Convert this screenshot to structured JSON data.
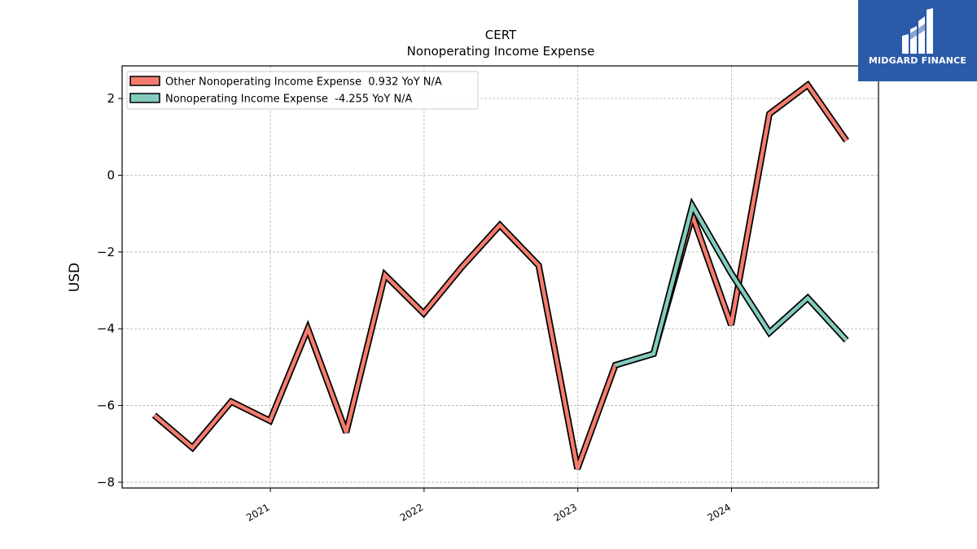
{
  "logo": {
    "text": "MIDGARD FINANCE"
  },
  "colors": {
    "series1": "#f47c6e",
    "series2": "#82cbbd",
    "outline": "#000000",
    "grid": "#b0b0b0",
    "logo_bg": "#2b5aa8"
  },
  "chart_data": {
    "type": "line",
    "title": "CERT",
    "subtitle": "Nonoperating Income Expense",
    "xlabel": "",
    "ylabel": "USD",
    "x_ticks": [
      "2021",
      "2022",
      "2023",
      "2024"
    ],
    "y_ticks": [
      2,
      0,
      -2,
      -4,
      -6,
      -8
    ],
    "y_tick_labels": [
      "2",
      "0",
      "−2",
      "−4",
      "−6",
      "−8"
    ],
    "ylim": [
      -8.15,
      2.85
    ],
    "xlim": [
      "2020-01-15",
      "2024-12-15"
    ],
    "grid": true,
    "legend_position": "upper-left",
    "series": [
      {
        "name": "Other Nonoperating Income Expense  0.932 YoY N/A",
        "color": "#f47c6e",
        "points": [
          [
            "2020-03-31",
            -6.25
          ],
          [
            "2020-06-30",
            -7.1
          ],
          [
            "2020-09-30",
            -5.9
          ],
          [
            "2020-12-31",
            -6.4
          ],
          [
            "2021-03-31",
            -4.0
          ],
          [
            "2021-06-30",
            -6.7
          ],
          [
            "2021-09-30",
            -2.6
          ],
          [
            "2021-12-31",
            -3.6
          ],
          [
            "2022-03-31",
            -2.4
          ],
          [
            "2022-06-30",
            -1.3
          ],
          [
            "2022-09-30",
            -2.35
          ],
          [
            "2022-12-31",
            -7.65
          ],
          [
            "2023-03-31",
            -4.95
          ],
          [
            "2023-06-30",
            -4.65
          ],
          [
            "2023-09-30",
            -1.05
          ],
          [
            "2023-12-31",
            -3.9
          ],
          [
            "2024-03-31",
            1.6
          ],
          [
            "2024-06-30",
            2.35
          ],
          [
            "2024-09-30",
            0.9
          ]
        ]
      },
      {
        "name": "Nonoperating Income Expense  -4.255 YoY N/A",
        "color": "#82cbbd",
        "points": [
          [
            "2023-03-31",
            -4.95
          ],
          [
            "2023-06-30",
            -4.65
          ],
          [
            "2023-09-30",
            -0.8
          ],
          [
            "2023-12-31",
            -2.55
          ],
          [
            "2024-03-31",
            -4.1
          ],
          [
            "2024-06-30",
            -3.2
          ],
          [
            "2024-09-30",
            -4.3
          ]
        ]
      }
    ]
  }
}
